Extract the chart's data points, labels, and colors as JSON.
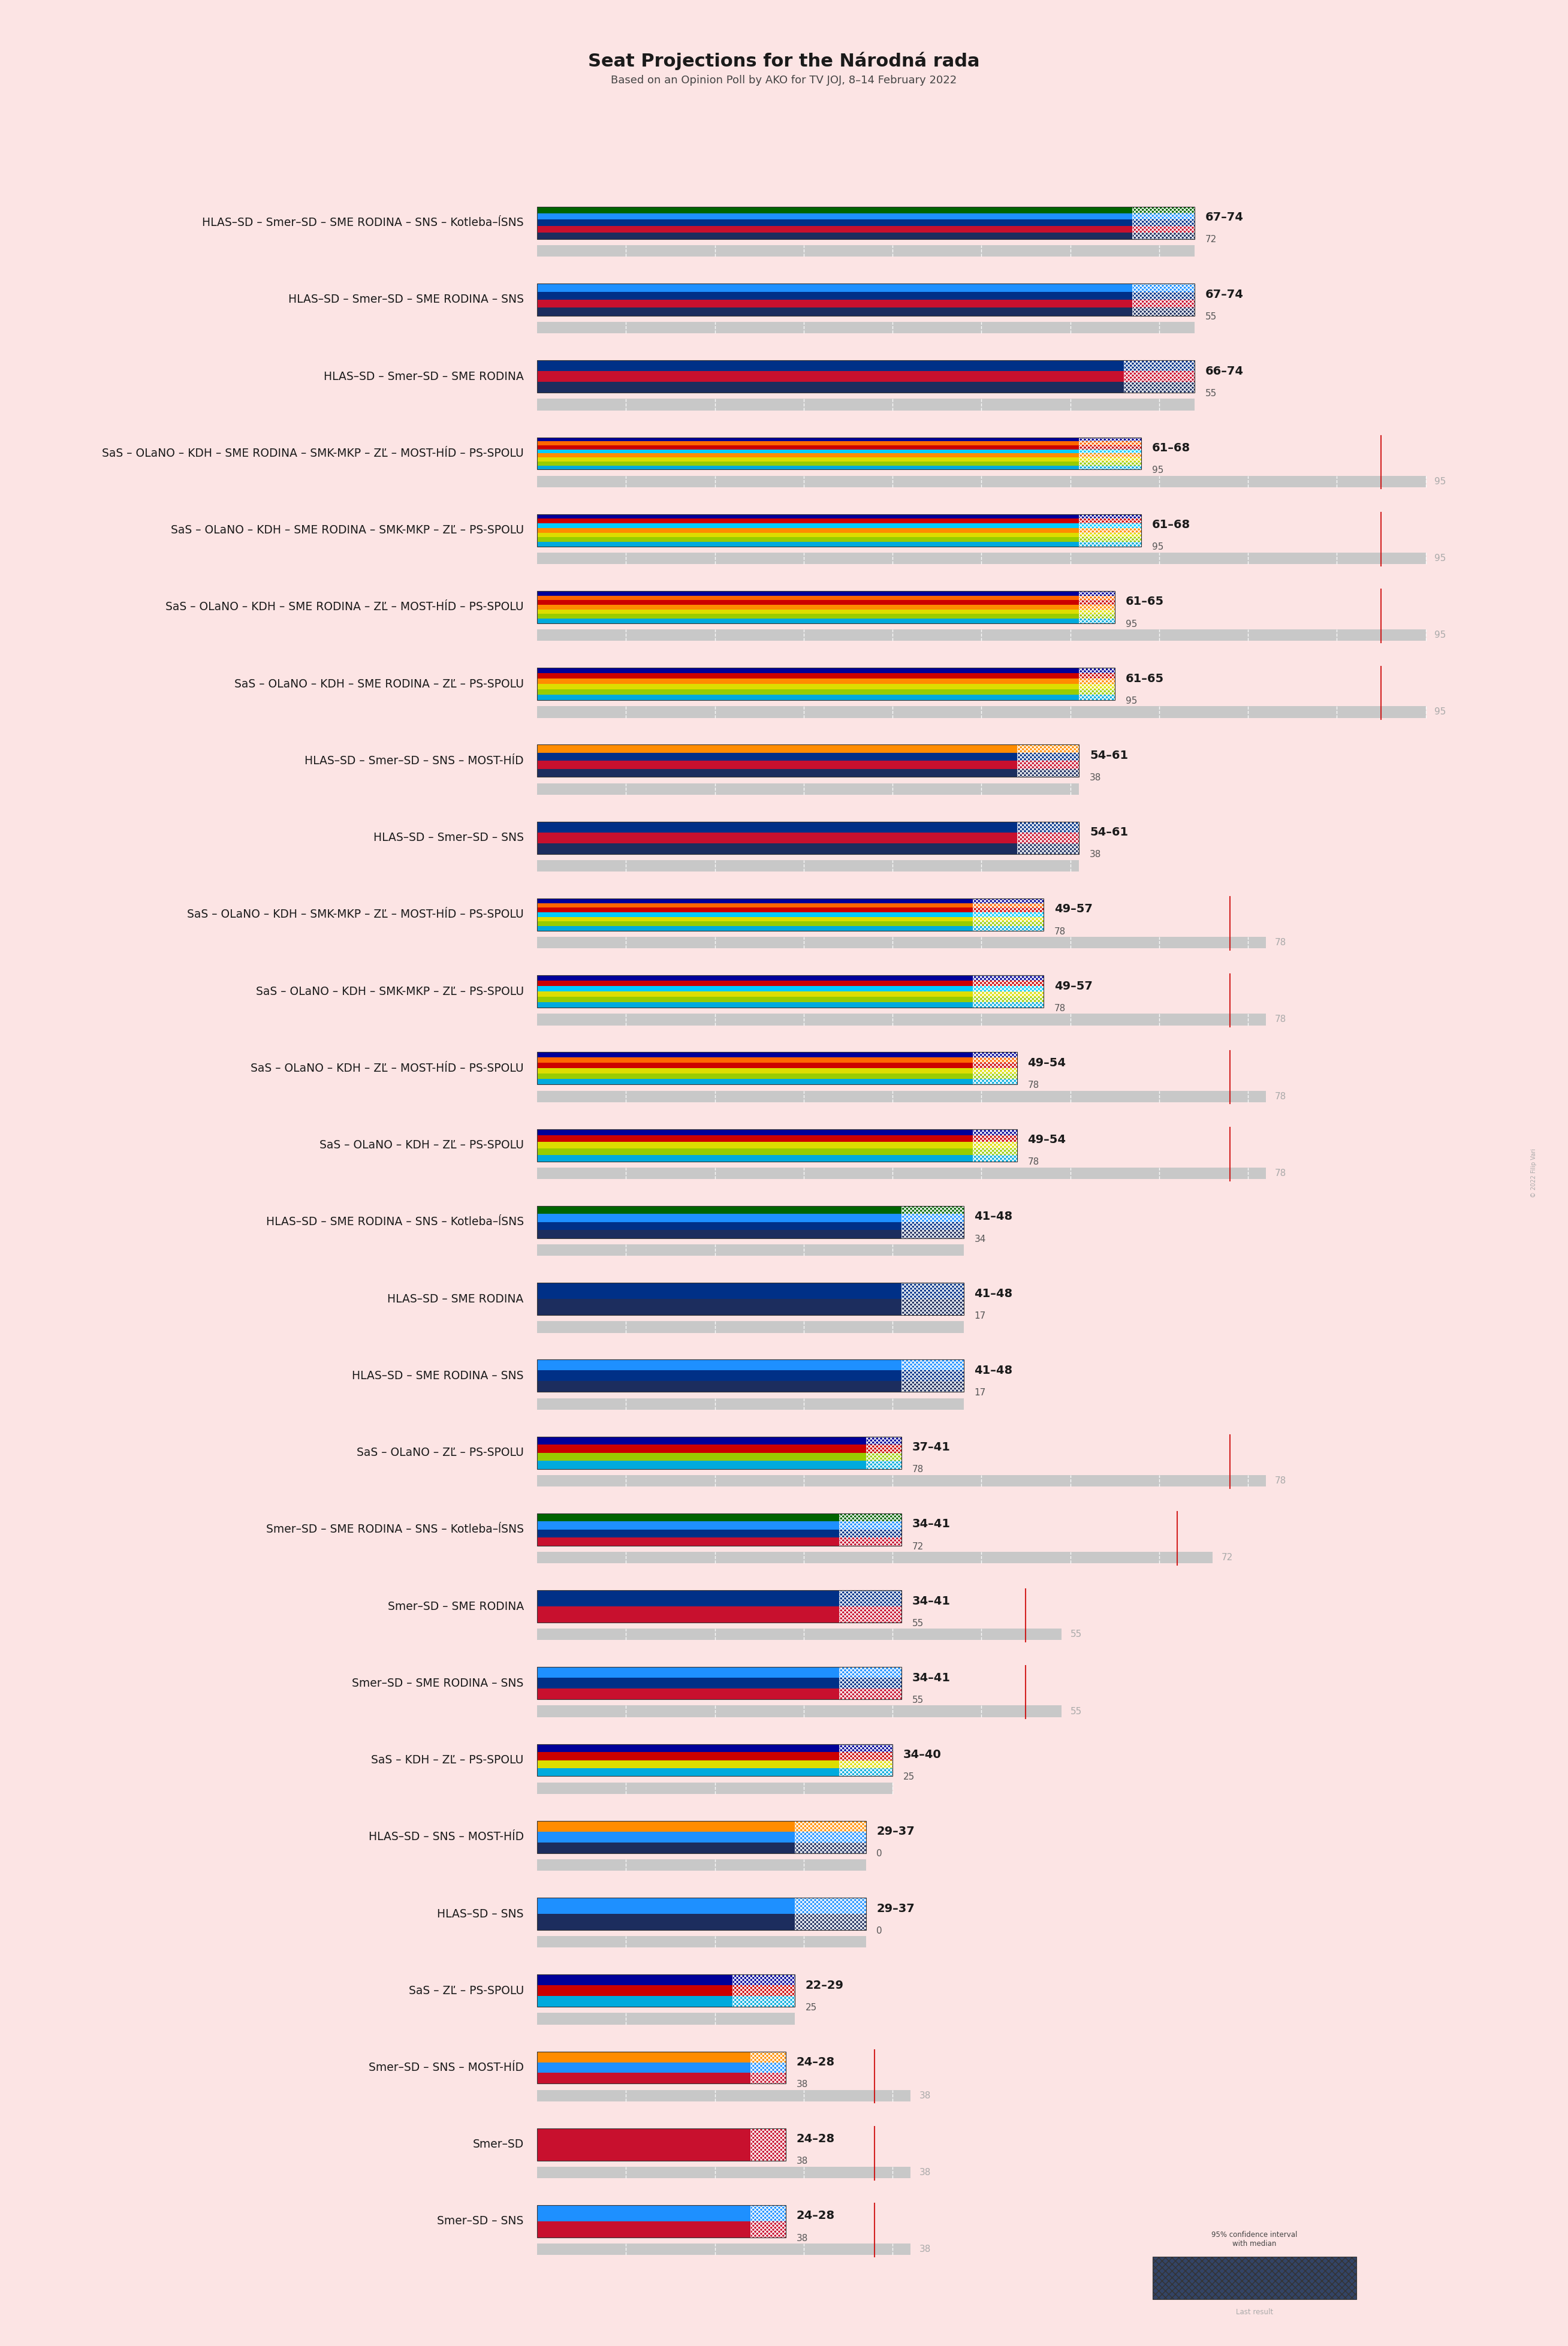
{
  "title": "Seat Projections for the Národná rada",
  "subtitle": "Based on an Opinion Poll by AKO for TV JOJ, 8–14 February 2022",
  "background_color": "#fce4e4",
  "majority_line": 76,
  "coalitions": [
    {
      "label": "HLAS–SD – Smer–SD – SME RODINA – SNS – Kotleba–ĺSNS",
      "range_low": 67,
      "range_high": 74,
      "median": 72,
      "last_result": null,
      "colors": [
        "#1c2d5e",
        "#c8102e",
        "#003087",
        "#1e90ff",
        "#006400"
      ],
      "type": "left",
      "ci_max": 74
    },
    {
      "label": "HLAS–SD – Smer–SD – SME RODINA – SNS",
      "range_low": 67,
      "range_high": 74,
      "median": 55,
      "last_result": null,
      "colors": [
        "#1c2d5e",
        "#c8102e",
        "#003087",
        "#1e90ff"
      ],
      "type": "left",
      "ci_max": 74
    },
    {
      "label": "HLAS–SD – Smer–SD – SME RODINA",
      "range_low": 66,
      "range_high": 74,
      "median": 55,
      "last_result": null,
      "colors": [
        "#1c2d5e",
        "#c8102e",
        "#003087"
      ],
      "type": "left",
      "ci_max": 74
    },
    {
      "label": "SaS – OLaNO – KDH – SME RODINA – SMK-MKP – ZĽ – MOST-HÍD – PS-SPOLU",
      "range_low": 61,
      "range_high": 68,
      "median": 95,
      "last_result": 95,
      "colors": [
        "#00aadd",
        "#99cc00",
        "#dddd00",
        "#ff8c00",
        "#00ccff",
        "#cc0000",
        "#ff6600",
        "#000099"
      ],
      "type": "right",
      "ci_max": 100
    },
    {
      "label": "SaS – OLaNO – KDH – SME RODINA – SMK-MKP – ZĽ – PS-SPOLU",
      "range_low": 61,
      "range_high": 68,
      "median": 95,
      "last_result": 95,
      "colors": [
        "#00aadd",
        "#99cc00",
        "#dddd00",
        "#ff8c00",
        "#00ccff",
        "#cc0000",
        "#000099"
      ],
      "type": "right",
      "ci_max": 100
    },
    {
      "label": "SaS – OLaNO – KDH – SME RODINA – ZĽ – MOST-HÍD – PS-SPOLU",
      "range_low": 61,
      "range_high": 65,
      "median": 95,
      "last_result": 95,
      "colors": [
        "#00aadd",
        "#99cc00",
        "#dddd00",
        "#ff8c00",
        "#cc0000",
        "#ff6600",
        "#000099"
      ],
      "type": "right",
      "ci_max": 100
    },
    {
      "label": "SaS – OLaNO – KDH – SME RODINA – ZĽ – PS-SPOLU",
      "range_low": 61,
      "range_high": 65,
      "median": 95,
      "last_result": 95,
      "colors": [
        "#00aadd",
        "#99cc00",
        "#dddd00",
        "#ff8c00",
        "#cc0000",
        "#000099"
      ],
      "type": "right",
      "ci_max": 100
    },
    {
      "label": "HLAS–SD – Smer–SD – SNS – MOST-HÍD",
      "range_low": 54,
      "range_high": 61,
      "median": 38,
      "last_result": null,
      "colors": [
        "#1c2d5e",
        "#c8102e",
        "#003087",
        "#ff8c00"
      ],
      "type": "left",
      "ci_max": 61
    },
    {
      "label": "HLAS–SD – Smer–SD – SNS",
      "range_low": 54,
      "range_high": 61,
      "median": 38,
      "last_result": null,
      "colors": [
        "#1c2d5e",
        "#c8102e",
        "#003087"
      ],
      "type": "left",
      "ci_max": 61
    },
    {
      "label": "SaS – OLaNO – KDH – SMK-MKP – ZĽ – MOST-HÍD – PS-SPOLU",
      "range_low": 49,
      "range_high": 57,
      "median": 78,
      "last_result": 78,
      "colors": [
        "#00aadd",
        "#99cc00",
        "#dddd00",
        "#00ccff",
        "#cc0000",
        "#ff6600",
        "#000099"
      ],
      "type": "right",
      "ci_max": 82
    },
    {
      "label": "SaS – OLaNO – KDH – SMK-MKP – ZĽ – PS-SPOLU",
      "range_low": 49,
      "range_high": 57,
      "median": 78,
      "last_result": 78,
      "colors": [
        "#00aadd",
        "#99cc00",
        "#dddd00",
        "#00ccff",
        "#cc0000",
        "#000099"
      ],
      "type": "right",
      "ci_max": 82
    },
    {
      "label": "SaS – OLaNO – KDH – ZĽ – MOST-HÍD – PS-SPOLU",
      "range_low": 49,
      "range_high": 54,
      "median": 78,
      "last_result": 78,
      "colors": [
        "#00aadd",
        "#99cc00",
        "#dddd00",
        "#cc0000",
        "#ff6600",
        "#000099"
      ],
      "type": "right",
      "ci_max": 82
    },
    {
      "label": "SaS – OLaNO – KDH – ZĽ – PS-SPOLU",
      "range_low": 49,
      "range_high": 54,
      "median": 78,
      "last_result": 78,
      "colors": [
        "#00aadd",
        "#99cc00",
        "#dddd00",
        "#cc0000",
        "#000099"
      ],
      "type": "right",
      "ci_max": 82
    },
    {
      "label": "HLAS–SD – SME RODINA – SNS – Kotleba–ĺSNS",
      "range_low": 41,
      "range_high": 48,
      "median": 34,
      "last_result": null,
      "colors": [
        "#1c2d5e",
        "#003087",
        "#1e90ff",
        "#006400"
      ],
      "type": "left",
      "ci_max": 48
    },
    {
      "label": "HLAS–SD – SME RODINA",
      "range_low": 41,
      "range_high": 48,
      "median": 17,
      "last_result": null,
      "colors": [
        "#1c2d5e",
        "#003087"
      ],
      "type": "left",
      "ci_max": 48
    },
    {
      "label": "HLAS–SD – SME RODINA – SNS",
      "range_low": 41,
      "range_high": 48,
      "median": 17,
      "last_result": null,
      "colors": [
        "#1c2d5e",
        "#003087",
        "#1e90ff"
      ],
      "type": "left",
      "ci_max": 48
    },
    {
      "label": "SaS – OLaNO – ZĽ – PS-SPOLU",
      "range_low": 37,
      "range_high": 41,
      "median": 78,
      "last_result": 78,
      "colors": [
        "#00aadd",
        "#99cc00",
        "#cc0000",
        "#000099"
      ],
      "type": "right",
      "ci_max": 82
    },
    {
      "label": "Smer–SD – SME RODINA – SNS – Kotleba–ĺSNS",
      "range_low": 34,
      "range_high": 41,
      "median": 72,
      "last_result": 72,
      "colors": [
        "#c8102e",
        "#003087",
        "#1e90ff",
        "#006400"
      ],
      "type": "left",
      "ci_max": 76
    },
    {
      "label": "Smer–SD – SME RODINA",
      "range_low": 34,
      "range_high": 41,
      "median": 55,
      "last_result": 55,
      "colors": [
        "#c8102e",
        "#003087"
      ],
      "type": "left",
      "ci_max": 59
    },
    {
      "label": "Smer–SD – SME RODINA – SNS",
      "range_low": 34,
      "range_high": 41,
      "median": 55,
      "last_result": 55,
      "colors": [
        "#c8102e",
        "#003087",
        "#1e90ff"
      ],
      "type": "left",
      "ci_max": 59
    },
    {
      "label": "SaS – KDH – ZĽ – PS-SPOLU",
      "range_low": 34,
      "range_high": 40,
      "median": 25,
      "last_result": null,
      "colors": [
        "#00aadd",
        "#dddd00",
        "#cc0000",
        "#000099"
      ],
      "type": "right",
      "ci_max": 40
    },
    {
      "label": "HLAS–SD – SNS – MOST-HÍD",
      "range_low": 29,
      "range_high": 37,
      "median": 0,
      "last_result": null,
      "colors": [
        "#1c2d5e",
        "#1e90ff",
        "#ff8c00"
      ],
      "type": "left",
      "ci_max": 37
    },
    {
      "label": "HLAS–SD – SNS",
      "range_low": 29,
      "range_high": 37,
      "median": 0,
      "last_result": null,
      "colors": [
        "#1c2d5e",
        "#1e90ff"
      ],
      "type": "left",
      "ci_max": 37
    },
    {
      "label": "SaS – ZĽ – PS-SPOLU",
      "range_low": 22,
      "range_high": 29,
      "median": 25,
      "last_result": null,
      "colors": [
        "#00aadd",
        "#cc0000",
        "#000099"
      ],
      "type": "right",
      "ci_max": 29
    },
    {
      "label": "Smer–SD – SNS – MOST-HÍD",
      "range_low": 24,
      "range_high": 28,
      "median": 38,
      "last_result": 38,
      "colors": [
        "#c8102e",
        "#1e90ff",
        "#ff8c00"
      ],
      "type": "left",
      "ci_max": 42
    },
    {
      "label": "Smer–SD",
      "range_low": 24,
      "range_high": 28,
      "median": 38,
      "last_result": 38,
      "colors": [
        "#c8102e"
      ],
      "type": "left",
      "ci_max": 42
    },
    {
      "label": "Smer–SD – SNS",
      "range_low": 24,
      "range_high": 28,
      "median": 38,
      "last_result": 38,
      "colors": [
        "#c8102e",
        "#1e90ff"
      ],
      "type": "left",
      "ci_max": 42
    }
  ]
}
